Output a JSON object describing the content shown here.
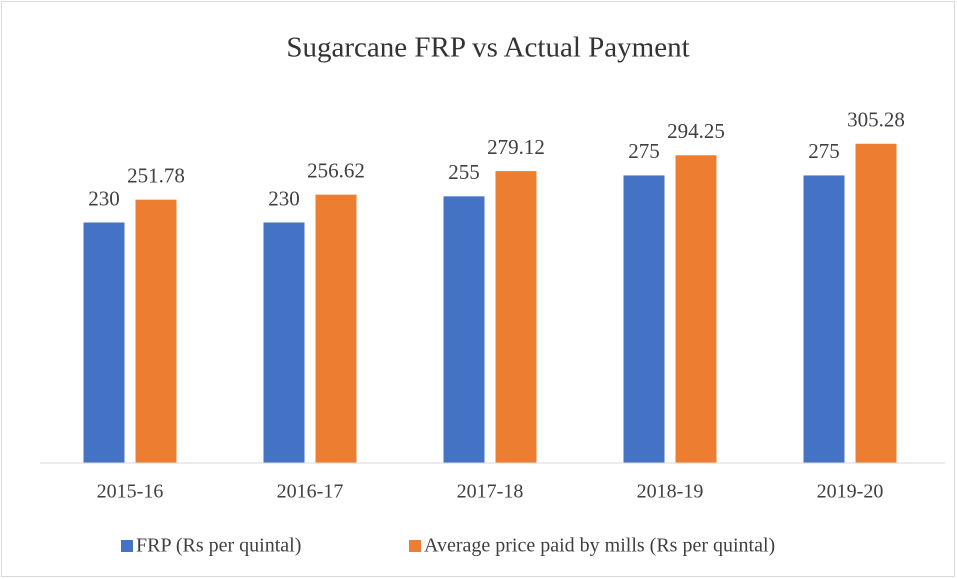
{
  "chart_data": {
    "type": "bar",
    "title": "Sugarcane FRP vs Actual Payment",
    "categories": [
      "2015-16",
      "2016-17",
      "2017-18",
      "2018-19",
      "2019-20"
    ],
    "series": [
      {
        "name": "FRP (Rs per quintal)",
        "color": "#4472c4",
        "values": [
          230,
          230,
          255,
          275,
          275
        ]
      },
      {
        "name": "Average price paid by mills (Rs per quintal)",
        "color": "#ed7d31",
        "values": [
          251.78,
          256.62,
          279.12,
          294.25,
          305.28
        ]
      }
    ],
    "ylim": [
      0,
      350
    ],
    "legend": "bottom"
  }
}
